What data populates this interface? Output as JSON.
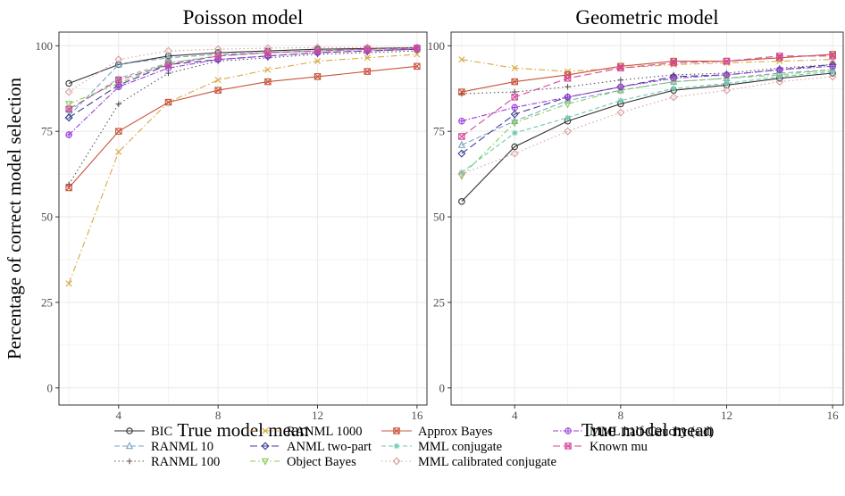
{
  "chart_data": [
    {
      "type": "line",
      "title": "Poisson model",
      "xlabel": "True model mean",
      "ylabel": "Percentage of correct model selection",
      "xlim": [
        1.6,
        16.4
      ],
      "ylim": [
        -5,
        104
      ],
      "xticks": [
        4,
        8,
        12,
        16
      ],
      "yticks": [
        0,
        25,
        50,
        75,
        100
      ],
      "grid": true,
      "x": [
        2,
        4,
        6,
        8,
        10,
        12,
        14,
        16
      ],
      "series": [
        {
          "name": "BIC",
          "color": "#333333",
          "dash": "",
          "marker": "circle",
          "values": [
            89,
            94.5,
            97,
            98,
            98.5,
            99,
            99.2,
            99.5
          ]
        },
        {
          "name": "RANML 10",
          "color": "#7aa3c4",
          "dash": "6 3",
          "marker": "triangle",
          "values": [
            79.5,
            94.5,
            96.5,
            97.5,
            98,
            98.5,
            99,
            99.2
          ]
        },
        {
          "name": "RANML 100",
          "color": "#555555",
          "dash": "1.5 3",
          "marker": "plus",
          "values": [
            59.5,
            83,
            92,
            95.5,
            96.5,
            97.5,
            98,
            98.5
          ]
        },
        {
          "name": "RANML 1000",
          "color": "#d9a843",
          "dash": "7 3 1.5 3",
          "marker": "cross",
          "values": [
            30.5,
            69,
            83.5,
            90,
            93,
            95.5,
            96.5,
            97.5
          ]
        },
        {
          "name": "ANML two-part",
          "color": "#3d3d8f",
          "dash": "8 4",
          "marker": "diamond",
          "values": [
            79,
            88.5,
            94.5,
            96,
            97,
            98,
            98.5,
            99
          ]
        },
        {
          "name": "Object Bayes",
          "color": "#80cc55",
          "dash": "6 3 1.5 3",
          "marker": "triangle-down",
          "values": [
            83,
            89,
            95,
            97,
            98,
            98.5,
            99,
            99.2
          ]
        },
        {
          "name": "Approx Bayes",
          "color": "#c9533a",
          "dash": "",
          "marker": "square-x",
          "values": [
            58.5,
            75,
            83.5,
            87,
            89.5,
            91,
            92.5,
            94
          ]
        },
        {
          "name": "MML conjugate",
          "color": "#70c8b0",
          "dash": "5 3",
          "marker": "asterisk",
          "values": [
            81,
            90.5,
            95,
            97,
            98,
            98.5,
            99,
            99.3
          ]
        },
        {
          "name": "MML calibrated conjugate",
          "color": "#d8a0a0",
          "dash": "1.5 3",
          "marker": "diamond",
          "values": [
            86.5,
            96,
            98.5,
            99,
            99.3,
            99.5,
            99.5,
            99.5
          ]
        },
        {
          "name": "MML half-Cauchy (s.d)",
          "color": "#9b3fd8",
          "dash": "6 2 1.5 2",
          "marker": "circle-plus",
          "values": [
            74,
            88,
            93.5,
            96,
            97,
            98,
            98.5,
            99
          ]
        },
        {
          "name": "Known mu",
          "color": "#d4469a",
          "dash": "8 4",
          "marker": "square-x",
          "values": [
            81.5,
            90,
            94.5,
            97,
            98,
            98.5,
            99,
            99.3
          ]
        }
      ]
    },
    {
      "type": "line",
      "title": "Geometric model",
      "xlabel": "True model mean",
      "ylabel": "",
      "xlim": [
        1.6,
        16.4
      ],
      "ylim": [
        -5,
        104
      ],
      "xticks": [
        4,
        8,
        12,
        16
      ],
      "yticks": [
        0,
        25,
        50,
        75,
        100
      ],
      "grid": true,
      "x": [
        2,
        4,
        6,
        8,
        10,
        12,
        14,
        16
      ],
      "series": [
        {
          "name": "BIC",
          "color": "#333333",
          "dash": "",
          "marker": "circle",
          "values": [
            54.5,
            70.5,
            78,
            83,
            87,
            88.5,
            90.5,
            92
          ]
        },
        {
          "name": "RANML 10",
          "color": "#7aa3c4",
          "dash": "6 3",
          "marker": "triangle",
          "values": [
            71,
            78,
            84,
            87,
            89.5,
            90.5,
            92,
            93
          ]
        },
        {
          "name": "RANML 100",
          "color": "#555555",
          "dash": "1.5 3",
          "marker": "plus",
          "values": [
            86,
            86.5,
            88,
            90,
            91.5,
            92,
            93.5,
            94.5
          ]
        },
        {
          "name": "RANML 1000",
          "color": "#d9a843",
          "dash": "7 3 1.5 3",
          "marker": "cross",
          "values": [
            96,
            93.5,
            92.5,
            93.5,
            94.5,
            95,
            95.5,
            96
          ]
        },
        {
          "name": "ANML two-part",
          "color": "#3d3d8f",
          "dash": "8 4",
          "marker": "diamond",
          "values": [
            68.5,
            80,
            85,
            88,
            91,
            91.5,
            93,
            94.5
          ]
        },
        {
          "name": "Object Bayes",
          "color": "#80cc55",
          "dash": "6 3 1.5 3",
          "marker": "triangle-down",
          "values": [
            62,
            77.5,
            83,
            87,
            89.5,
            90.5,
            91.5,
            93
          ]
        },
        {
          "name": "Approx Bayes",
          "color": "#c9533a",
          "dash": "",
          "marker": "square-x",
          "values": [
            86.5,
            89.5,
            91.5,
            94,
            95.5,
            95.5,
            96.5,
            97.5
          ]
        },
        {
          "name": "MML conjugate",
          "color": "#70c8b0",
          "dash": "5 3",
          "marker": "asterisk",
          "values": [
            63,
            74.5,
            79,
            84,
            87.5,
            89,
            91,
            92.5
          ]
        },
        {
          "name": "MML calibrated conjugate",
          "color": "#d8a0a0",
          "dash": "1.5 3",
          "marker": "diamond",
          "values": [
            62.5,
            68.5,
            75,
            80.5,
            85,
            87,
            89.5,
            91
          ]
        },
        {
          "name": "MML half-Cauchy (s.d)",
          "color": "#9b3fd8",
          "dash": "6 2 1.5 2",
          "marker": "circle-plus",
          "values": [
            78,
            82,
            85,
            88,
            90.5,
            91.5,
            93,
            94
          ]
        },
        {
          "name": "Known mu",
          "color": "#d4469a",
          "dash": "8 4",
          "marker": "square-x",
          "values": [
            73.5,
            85,
            90.5,
            93.5,
            95,
            95.5,
            97,
            97
          ]
        }
      ]
    }
  ],
  "legend": {
    "position": "bottom",
    "columns": [
      [
        "BIC",
        "RANML 10",
        "RANML 100"
      ],
      [
        "RANML 1000",
        "ANML two-part",
        "Object Bayes"
      ],
      [
        "Approx Bayes",
        "MML conjugate",
        "MML calibrated conjugate"
      ],
      [
        "MML half-Cauchy (s.d)",
        "Known mu"
      ]
    ]
  },
  "colors": {
    "panel_background": "#ffffff",
    "grid": "#ebebeb",
    "axis_text": "#4d4d4d"
  }
}
